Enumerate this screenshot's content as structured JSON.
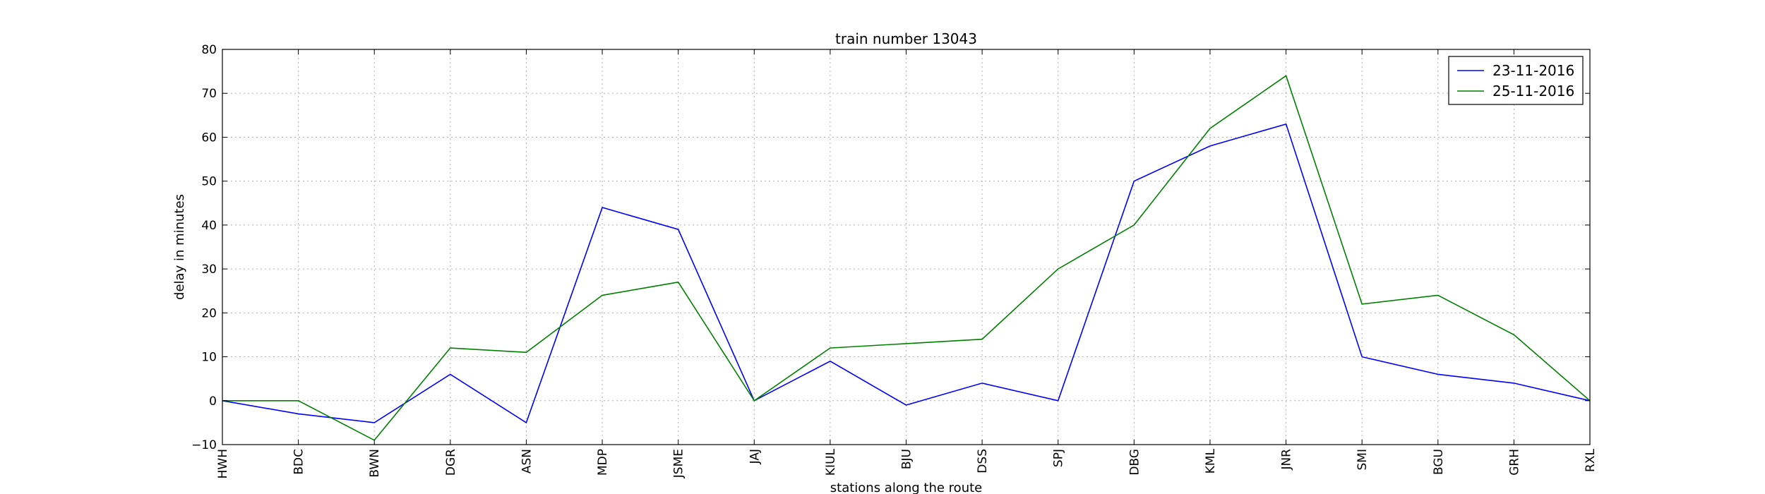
{
  "chart_data": {
    "type": "line",
    "title": "train number 13043",
    "xlabel": "stations along the route",
    "ylabel": "delay in minutes",
    "categories": [
      "HWH",
      "BDC",
      "BWN",
      "DGR",
      "ASN",
      "MDP",
      "JSME",
      "JAJ",
      "KIUL",
      "BJU",
      "DSS",
      "SPJ",
      "DBG",
      "KML",
      "JNR",
      "SMI",
      "BGU",
      "GRH",
      "RXL"
    ],
    "ylim": [
      -10,
      80
    ],
    "yticks": [
      -10,
      0,
      10,
      20,
      30,
      40,
      50,
      60,
      70,
      80
    ],
    "grid": true,
    "legend_position": "top-right",
    "series": [
      {
        "name": "23-11-2016",
        "color": "#0000ff",
        "values": [
          0,
          -3,
          -5,
          6,
          -5,
          44,
          39,
          0,
          9,
          -1,
          4,
          0,
          50,
          58,
          63,
          10,
          6,
          4,
          0
        ]
      },
      {
        "name": "25-11-2016",
        "color": "#008000",
        "values": [
          0,
          0,
          -9,
          12,
          11,
          24,
          27,
          0,
          12,
          13,
          14,
          30,
          40,
          62,
          74,
          22,
          24,
          15,
          0
        ]
      }
    ]
  }
}
